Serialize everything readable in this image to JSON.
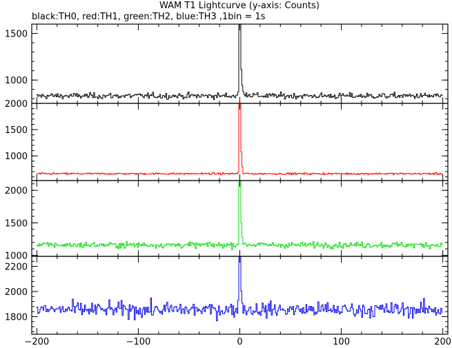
{
  "chart_data": {
    "type": "line",
    "title": "WAM T1 Lightcurve (y-axis: Counts)",
    "subtitle": "black:TH0, red:TH1, green:TH2, blue:TH3 ,1bin = 1s",
    "xlabel": "",
    "ylabel": "",
    "xlim": [
      -205,
      205
    ],
    "x_ticks": [
      -200,
      -100,
      0,
      100,
      200
    ],
    "x_tick_labels": [
      "−200",
      "−100",
      "0",
      "100",
      "200"
    ],
    "bin_seconds": 1,
    "grid": false,
    "legend": "none",
    "panels": [
      {
        "series_name": "TH0",
        "color": "#000000",
        "ylim": [
          750,
          1600
        ],
        "y_ticks": [
          1000,
          1500
        ],
        "y_tick_labels": [
          "1000",
          "1500"
        ],
        "baseline": 830,
        "noise": 22,
        "peak": 1600,
        "tail_amp": 70,
        "tail_tau": 6
      },
      {
        "series_name": "TH1",
        "color": "#ff0000",
        "ylim": [
          530,
          2000
        ],
        "y_ticks": [
          1000,
          1500,
          2000
        ],
        "y_tick_labels": [
          "1000",
          "1500",
          "2000"
        ],
        "baseline": 660,
        "noise": 12,
        "peak": 2000,
        "tail_amp": 30,
        "tail_tau": 3
      },
      {
        "series_name": "TH2",
        "color": "#00dd00",
        "ylim": [
          985,
          2150
        ],
        "y_ticks": [
          1000,
          1500,
          2000
        ],
        "y_tick_labels": [
          "1000",
          "1500",
          "2000"
        ],
        "baseline": 1160,
        "noise": 32,
        "peak": 2150,
        "tail_amp": 60,
        "tail_tau": 5
      },
      {
        "series_name": "TH3",
        "color": "#0000ee",
        "ylim": [
          1660,
          2280
        ],
        "y_ticks": [
          1800,
          2000,
          2200
        ],
        "y_tick_labels": [
          "1800",
          "2000",
          "2200"
        ],
        "baseline": 1855,
        "noise": 42,
        "peak": 2280,
        "tail_amp": 40,
        "tail_tau": 3
      }
    ]
  }
}
